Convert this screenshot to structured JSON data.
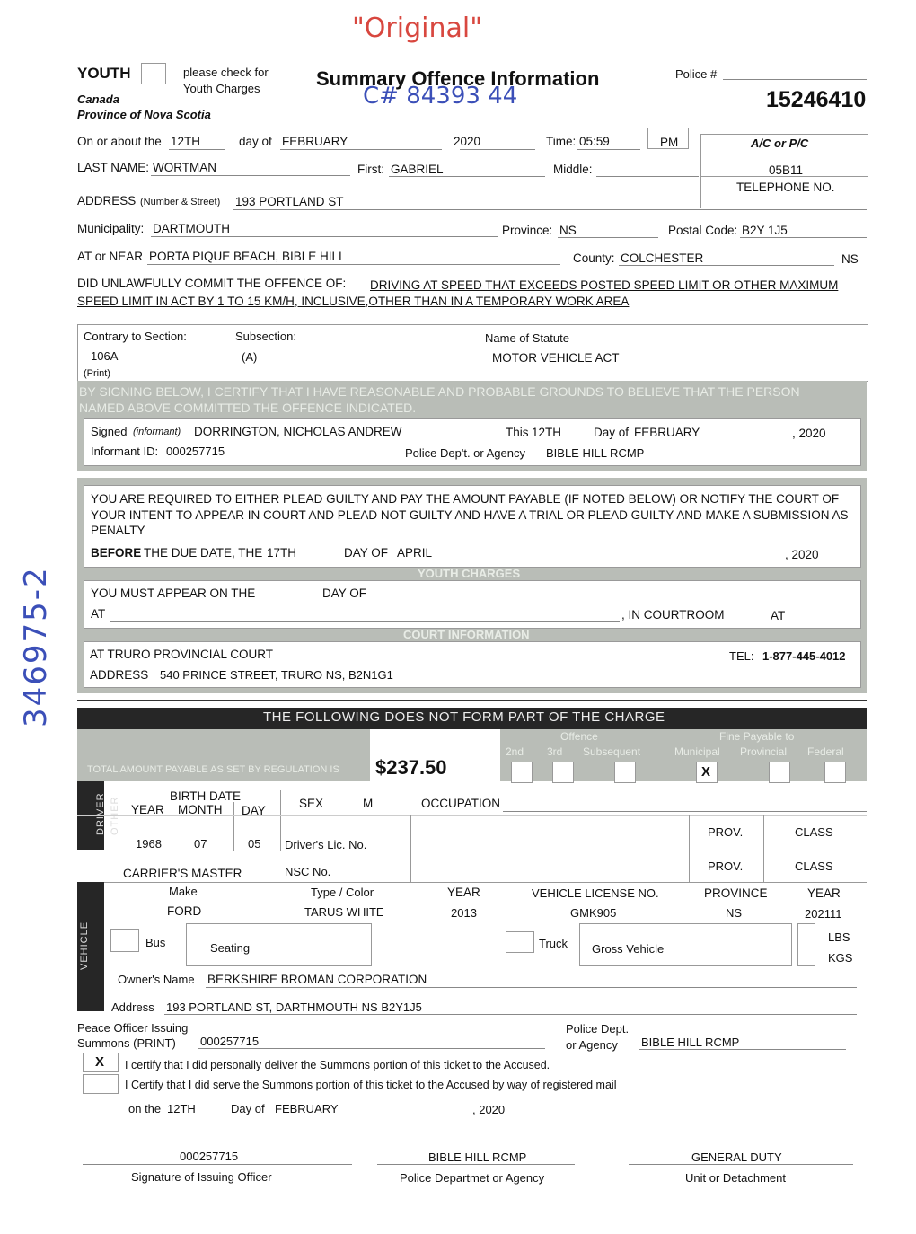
{
  "handwriting": {
    "original": "\"Original\"",
    "case_no": "C# 84393 44",
    "side_no": "346975-2"
  },
  "header": {
    "youth": "YOUTH",
    "youth_note1": "please check for",
    "youth_note2": "Youth Charges",
    "canada": "Canada",
    "province": "Province of Nova Scotia",
    "title": "Summary Offence Information",
    "police_label": "Police #",
    "police_no": "15246410"
  },
  "date_row": {
    "on_about": "On or about the",
    "day": "12TH",
    "day_of": "day of",
    "month": "FEBRUARY",
    "year": "2020",
    "time_label": "Time:",
    "time": "05:59",
    "ampm": "PM",
    "acpc_label": "A/C or P/C",
    "acpc": "05B11",
    "telephone": "TELEPHONE NO."
  },
  "person": {
    "last_label": "LAST NAME:",
    "last": "WORTMAN",
    "first_label": "First:",
    "first": "GABRIEL",
    "middle_label": "Middle:",
    "address_label": "ADDRESS",
    "address_sub": "(Number & Street)",
    "address": "193 PORTLAND ST",
    "muni_label": "Municipality:",
    "muni": "DARTMOUTH",
    "prov_label": "Province:",
    "prov": "NS",
    "postal_label": "Postal Code:",
    "postal": "B2Y 1J5",
    "near_label": "AT or NEAR",
    "near": "PORTA PIQUE BEACH, BIBLE HILL",
    "county_label": "County:",
    "county": "COLCHESTER",
    "county_prov": "NS"
  },
  "offence": {
    "lead": "DID UNLAWFULLY COMMIT THE OFFENCE OF:",
    "text1": "DRIVING AT SPEED THAT EXCEEDS POSTED SPEED LIMIT OR OTHER MAXIMUM",
    "text2": "SPEED LIMIT IN ACT BY 1 TO 15 KM/H, INCLUSIVE,OTHER THAN IN A TEMPORARY WORK AREA",
    "section_label": "Contrary to Section:",
    "section": "106A",
    "subsection_label": "Subsection:",
    "subsection": "(A)",
    "statute_label": "Name of Statute",
    "statute": "MOTOR VEHICLE ACT",
    "print": "(Print)",
    "certify1": "BY SIGNING BELOW, I CERTIFY THAT I HAVE REASONABLE AND PROBABLE GROUNDS TO BELIEVE THAT THE PERSON",
    "certify2": "NAMED ABOVE COMMITTED THE OFFENCE INDICATED.",
    "signed_label": "Signed",
    "signed_sub": "(informant)",
    "signed": "DORRINGTON, NICHOLAS ANDREW",
    "this_label": "This",
    "this_day": "12TH",
    "day_of": "Day of",
    "month": "FEBRUARY",
    "year": ", 2020",
    "informant_label": "Informant ID:",
    "informant": "000257715",
    "agency_label": "Police Dep't. or Agency",
    "agency": "BIBLE HILL RCMP"
  },
  "notice": {
    "p1": "YOU ARE REQUIRED TO EITHER PLEAD GUILTY AND PAY THE AMOUNT PAYABLE (IF NOTED BELOW) OR NOTIFY THE COURT OF",
    "p2": "YOUR INTENT TO APPEAR IN COURT AND PLEAD NOT GUILTY AND HAVE A TRIAL OR PLEAD GUILTY AND MAKE A SUBMISSION AS",
    "p3": "PENALTY",
    "before": "BEFORE",
    "due": "THE DUE DATE, THE",
    "due_day": "17TH",
    "day_of": "DAY OF",
    "due_month": "APRIL",
    "due_year": ", 2020",
    "youth_charges": "YOUTH CHARGES",
    "appear": "YOU MUST APPEAR ON THE",
    "appear_day_of": "DAY OF",
    "at": "AT",
    "courtroom": ", IN COURTROOM",
    "at2": "AT",
    "court_info": "COURT INFORMATION",
    "court": "AT TRURO PROVINCIAL COURT",
    "tel_label": "TEL:",
    "tel": "1-877-445-4012",
    "addr_label": "ADDRESS",
    "addr": "540 PRINCE STREET, TRURO NS, B2N1G1"
  },
  "charge": {
    "banner": "THE FOLLOWING DOES NOT FORM PART OF THE CHARGE",
    "total_label": "TOTAL AMOUNT PAYABLE AS SET BY REGULATION IS",
    "total": "$237.50",
    "offence": "Offence",
    "nd": "2nd",
    "rd": "3rd",
    "subsequent": "Subsequent",
    "fine_to": "Fine Payable to",
    "municipal": "Municipal",
    "provincial": "Provincial",
    "federal": "Federal",
    "municipal_mark": "X"
  },
  "driver": {
    "driver": "DRIVER",
    "other": "OTHER",
    "birth": "BIRTH DATE",
    "year_l": "YEAR",
    "month_l": "MONTH",
    "day_l": "DAY",
    "year": "1968",
    "month": "07",
    "day": "05",
    "sex_label": "SEX",
    "sex": "M",
    "occupation": "OCCUPATION",
    "lic": "Driver's Lic. No.",
    "prov": "PROV.",
    "class": "CLASS",
    "carrier": "CARRIER'S MASTER",
    "nsc": "NSC No."
  },
  "vehicle": {
    "label": "VEHICLE",
    "make_l": "Make",
    "make": "FORD",
    "type_l": "Type / Color",
    "type": "TARUS WHITE",
    "year_l": "YEAR",
    "year": "2013",
    "lic_l": "VEHICLE LICENSE NO.",
    "lic": "GMK905",
    "prov_l": "PROVINCE",
    "prov": "NS",
    "year2_l": "YEAR",
    "year2": "202111",
    "bus": "Bus",
    "seating": "Seating",
    "truck": "Truck",
    "gross": "Gross Vehicle",
    "lbs": "LBS",
    "kgs": "KGS",
    "owner_label": "Owner's Name",
    "owner": "BERKSHIRE BROMAN CORPORATION",
    "addr_label": "Address",
    "addr": "193 PORTLAND ST, DARTHMOUTH NS B2Y1J5"
  },
  "summons": {
    "officer1": "Peace Officer Issuing",
    "officer2": "Summons (PRINT)",
    "officer": "000257715",
    "dept1": "Police Dept.",
    "dept2": "or Agency",
    "dept": "BIBLE HILL RCMP",
    "check1": "X",
    "c1": "I certify that I did personally deliver the Summons portion of this ticket to the Accused.",
    "c2": "I Certify that I did serve the Summons portion of this ticket to the Accused by way of registered mail",
    "on": "on the",
    "on_day": "12TH",
    "day_of": "Day of",
    "month": "FEBRUARY",
    "year": ", 2020"
  },
  "footer": {
    "sig": "000257715",
    "sig_l": "Signature of Issuing Officer",
    "agency": "BIBLE HILL RCMP",
    "agency_l": "Police Departmet or Agency",
    "unit": "GENERAL DUTY",
    "unit_l": "Unit or Detachment"
  }
}
